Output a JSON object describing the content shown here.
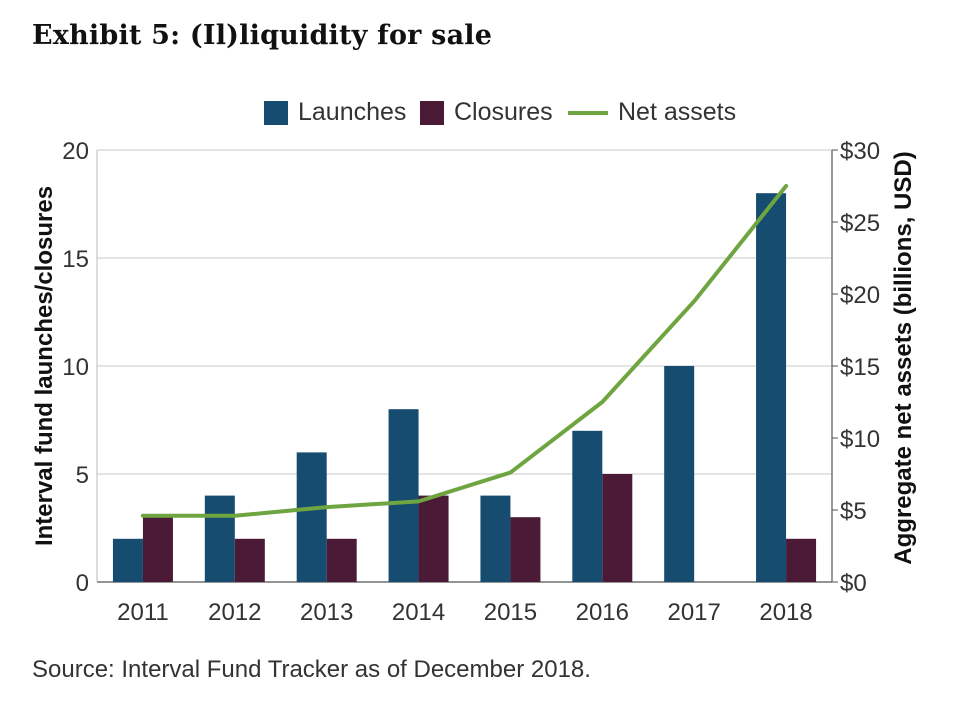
{
  "title": "Exhibit 5: (Il)liquidity for sale",
  "source": "Source: Interval Fund Tracker as of December 2018.",
  "legend": {
    "launches": "Launches",
    "closures": "Closures",
    "net_assets": "Net assets"
  },
  "colors": {
    "launches": "#154c6f",
    "closures": "#4b1a36",
    "net_assets": "#6ea540",
    "grid": "#c8c8c8"
  },
  "chart_data": {
    "type": "bar",
    "categories": [
      "2011",
      "2012",
      "2013",
      "2014",
      "2015",
      "2016",
      "2017",
      "2018"
    ],
    "series": [
      {
        "name": "Launches",
        "type": "bar",
        "axis": "left",
        "values": [
          2,
          4,
          6,
          8,
          4,
          7,
          10,
          18
        ]
      },
      {
        "name": "Closures",
        "type": "bar",
        "axis": "left",
        "values": [
          3,
          2,
          2,
          4,
          3,
          5,
          0,
          2
        ]
      },
      {
        "name": "Net assets",
        "type": "line",
        "axis": "right",
        "values": [
          4.6,
          4.6,
          5.2,
          5.6,
          7.6,
          12.5,
          19.5,
          27.5
        ]
      }
    ],
    "ylabel": "Interval fund launches/closures",
    "ylim": [
      0,
      20
    ],
    "yticks": [
      "0",
      "5",
      "10",
      "15",
      "20"
    ],
    "y2label": "Aggregate net assets (billions, USD)",
    "y2lim": [
      0,
      30
    ],
    "y2ticks": [
      "$0",
      "$5",
      "$10",
      "$15",
      "$20",
      "$25",
      "$30"
    ],
    "grid": true,
    "legend_position": "top"
  }
}
